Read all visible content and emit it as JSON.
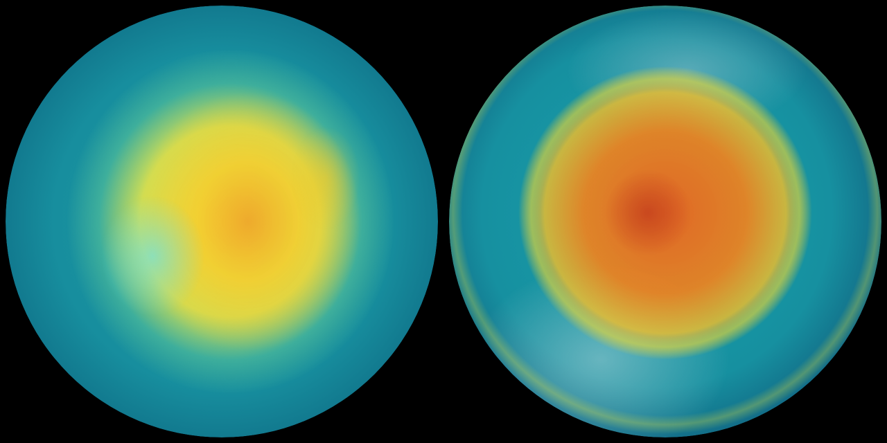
{
  "background_color": "#000000",
  "globes": [
    {
      "id": "left",
      "ocean_color": "#178e9e",
      "core_color": "#f0e64a",
      "peak_color": "#f0a028"
    },
    {
      "id": "right",
      "ocean_color": "#1690a0",
      "core_color": "#eb641e",
      "peak_color": "#c8461e"
    }
  ]
}
